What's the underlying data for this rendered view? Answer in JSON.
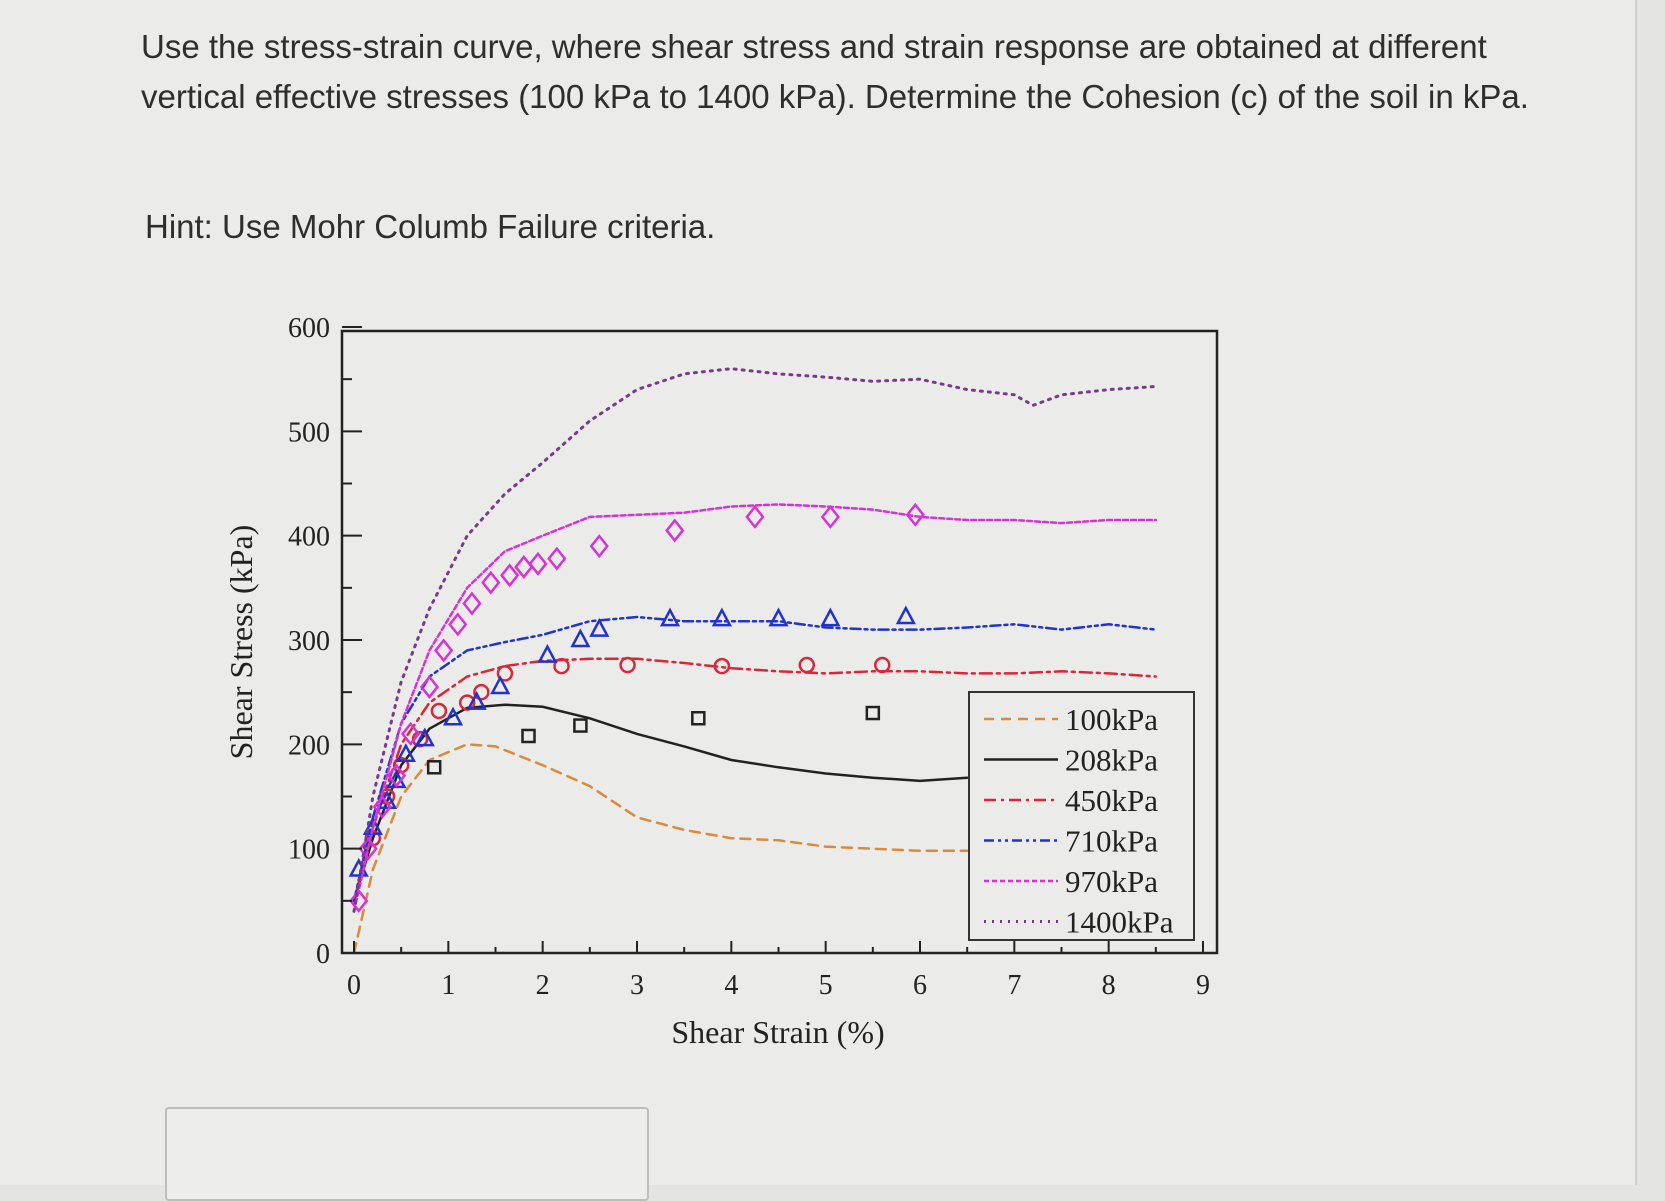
{
  "question": {
    "text": "Use the stress-strain curve, where shear stress and strain response are obtained at different vertical effective stresses (100 kPa to 1400 kPa). Determine the Cohesion (c) of the soil in kPa.",
    "hint": "Hint: Use Mohr Columb Failure criteria."
  },
  "answer_input": {
    "value": ""
  },
  "chart_data": {
    "type": "line",
    "xlabel": "Shear Strain (%)",
    "ylabel": "Shear Stress (kPa)",
    "xlim": [
      0,
      9
    ],
    "ylim": [
      0,
      600
    ],
    "xticks": [
      "0",
      "1",
      "2",
      "3",
      "4",
      "5",
      "6",
      "7",
      "8",
      "9"
    ],
    "yticks": [
      "0",
      "100",
      "200",
      "300",
      "400",
      "500",
      "600"
    ],
    "grid": false,
    "legend_position": "bottom-right",
    "series": [
      {
        "name": "100kPa",
        "color": "#d98a3a",
        "dash": "dashed",
        "points": [
          [
            0,
            0
          ],
          [
            0.2,
            80
          ],
          [
            0.5,
            150
          ],
          [
            0.8,
            185
          ],
          [
            1.2,
            200
          ],
          [
            1.5,
            198
          ],
          [
            2,
            180
          ],
          [
            2.5,
            160
          ],
          [
            3,
            130
          ],
          [
            3.5,
            118
          ],
          [
            4,
            110
          ],
          [
            4.5,
            108
          ],
          [
            5,
            102
          ],
          [
            5.5,
            100
          ],
          [
            6,
            98
          ],
          [
            6.5,
            98
          ]
        ],
        "markers": []
      },
      {
        "name": "208kPa",
        "color": "#222222",
        "dash": "solid",
        "points": [
          [
            0,
            50
          ],
          [
            0.2,
            110
          ],
          [
            0.5,
            180
          ],
          [
            0.8,
            215
          ],
          [
            1.2,
            235
          ],
          [
            1.6,
            238
          ],
          [
            2,
            236
          ],
          [
            2.5,
            225
          ],
          [
            3,
            210
          ],
          [
            3.5,
            198
          ],
          [
            4,
            185
          ],
          [
            4.5,
            178
          ],
          [
            5,
            172
          ],
          [
            5.5,
            168
          ],
          [
            6,
            165
          ],
          [
            6.5,
            168
          ]
        ],
        "marker": "square",
        "markers": [
          [
            0.85,
            178
          ],
          [
            1.85,
            208
          ],
          [
            2.4,
            218
          ],
          [
            3.65,
            225
          ],
          [
            5.5,
            230
          ]
        ]
      },
      {
        "name": "450kPa",
        "color": "#d9263a",
        "dash": "dash-dot",
        "points": [
          [
            0,
            50
          ],
          [
            0.2,
            120
          ],
          [
            0.5,
            200
          ],
          [
            0.8,
            240
          ],
          [
            1.2,
            265
          ],
          [
            1.6,
            275
          ],
          [
            2,
            280
          ],
          [
            2.5,
            282
          ],
          [
            3,
            282
          ],
          [
            3.5,
            278
          ],
          [
            4,
            273
          ],
          [
            4.5,
            270
          ],
          [
            5,
            268
          ],
          [
            5.5,
            270
          ],
          [
            6,
            270
          ],
          [
            6.5,
            268
          ],
          [
            7,
            268
          ],
          [
            7.5,
            270
          ],
          [
            8,
            268
          ],
          [
            8.5,
            265
          ]
        ],
        "marker": "circle",
        "markers": [
          [
            0.2,
            110
          ],
          [
            0.35,
            150
          ],
          [
            0.5,
            180
          ],
          [
            0.7,
            205
          ],
          [
            0.9,
            232
          ],
          [
            1.2,
            240
          ],
          [
            1.35,
            250
          ],
          [
            1.6,
            268
          ],
          [
            2.2,
            275
          ],
          [
            2.9,
            276
          ],
          [
            3.9,
            275
          ],
          [
            4.8,
            276
          ],
          [
            5.6,
            276
          ]
        ]
      },
      {
        "name": "710kPa",
        "color": "#2233cc",
        "dash": "dash-dot-dot",
        "points": [
          [
            0,
            50
          ],
          [
            0.2,
            130
          ],
          [
            0.5,
            220
          ],
          [
            0.8,
            265
          ],
          [
            1.2,
            290
          ],
          [
            1.6,
            298
          ],
          [
            2,
            305
          ],
          [
            2.5,
            318
          ],
          [
            3,
            322
          ],
          [
            3.5,
            318
          ],
          [
            4,
            318
          ],
          [
            4.5,
            318
          ],
          [
            5,
            312
          ],
          [
            5.5,
            310
          ],
          [
            6,
            310
          ],
          [
            6.5,
            312
          ],
          [
            7,
            315
          ],
          [
            7.5,
            310
          ],
          [
            8,
            315
          ],
          [
            8.5,
            310
          ]
        ],
        "marker": "triangle",
        "markers": [
          [
            0.05,
            80
          ],
          [
            0.2,
            120
          ],
          [
            0.35,
            145
          ],
          [
            0.45,
            165
          ],
          [
            0.55,
            190
          ],
          [
            0.75,
            205
          ],
          [
            1.05,
            225
          ],
          [
            1.3,
            240
          ],
          [
            1.55,
            255
          ],
          [
            2.05,
            285
          ],
          [
            2.4,
            300
          ],
          [
            2.6,
            310
          ],
          [
            3.35,
            320
          ],
          [
            3.9,
            320
          ],
          [
            4.5,
            320
          ],
          [
            5.05,
            320
          ],
          [
            5.85,
            322
          ]
        ]
      },
      {
        "name": "970kPa",
        "color": "#d633d6",
        "dash": "short-dash",
        "points": [
          [
            0,
            40
          ],
          [
            0.2,
            120
          ],
          [
            0.5,
            220
          ],
          [
            0.8,
            290
          ],
          [
            1.2,
            350
          ],
          [
            1.6,
            385
          ],
          [
            2,
            400
          ],
          [
            2.5,
            418
          ],
          [
            3,
            420
          ],
          [
            3.5,
            422
          ],
          [
            4,
            428
          ],
          [
            4.5,
            430
          ],
          [
            5,
            428
          ],
          [
            5.5,
            425
          ],
          [
            6,
            418
          ],
          [
            6.5,
            415
          ],
          [
            7,
            415
          ],
          [
            7.5,
            412
          ],
          [
            8,
            415
          ],
          [
            8.5,
            415
          ]
        ],
        "marker": "diamond",
        "markers": [
          [
            0.05,
            50
          ],
          [
            0.15,
            100
          ],
          [
            0.3,
            140
          ],
          [
            0.45,
            170
          ],
          [
            0.6,
            210
          ],
          [
            0.8,
            255
          ],
          [
            0.95,
            290
          ],
          [
            1.1,
            315
          ],
          [
            1.25,
            335
          ],
          [
            1.45,
            355
          ],
          [
            1.65,
            362
          ],
          [
            1.8,
            370
          ],
          [
            1.95,
            373
          ],
          [
            2.15,
            378
          ],
          [
            2.6,
            390
          ],
          [
            3.4,
            405
          ],
          [
            4.25,
            418
          ],
          [
            5.05,
            418
          ],
          [
            5.95,
            420
          ]
        ]
      },
      {
        "name": "1400kPa",
        "color": "#7a3a8a",
        "dash": "dotted",
        "points": [
          [
            0,
            40
          ],
          [
            0.2,
            150
          ],
          [
            0.5,
            260
          ],
          [
            0.8,
            330
          ],
          [
            1.2,
            400
          ],
          [
            1.6,
            440
          ],
          [
            2,
            470
          ],
          [
            2.5,
            510
          ],
          [
            3,
            540
          ],
          [
            3.5,
            555
          ],
          [
            4,
            560
          ],
          [
            4.5,
            555
          ],
          [
            5,
            552
          ],
          [
            5.5,
            548
          ],
          [
            6,
            550
          ],
          [
            6.5,
            540
          ],
          [
            7,
            535
          ],
          [
            7.2,
            525
          ],
          [
            7.5,
            535
          ],
          [
            8,
            540
          ],
          [
            8.5,
            543
          ]
        ],
        "markers": []
      }
    ]
  }
}
